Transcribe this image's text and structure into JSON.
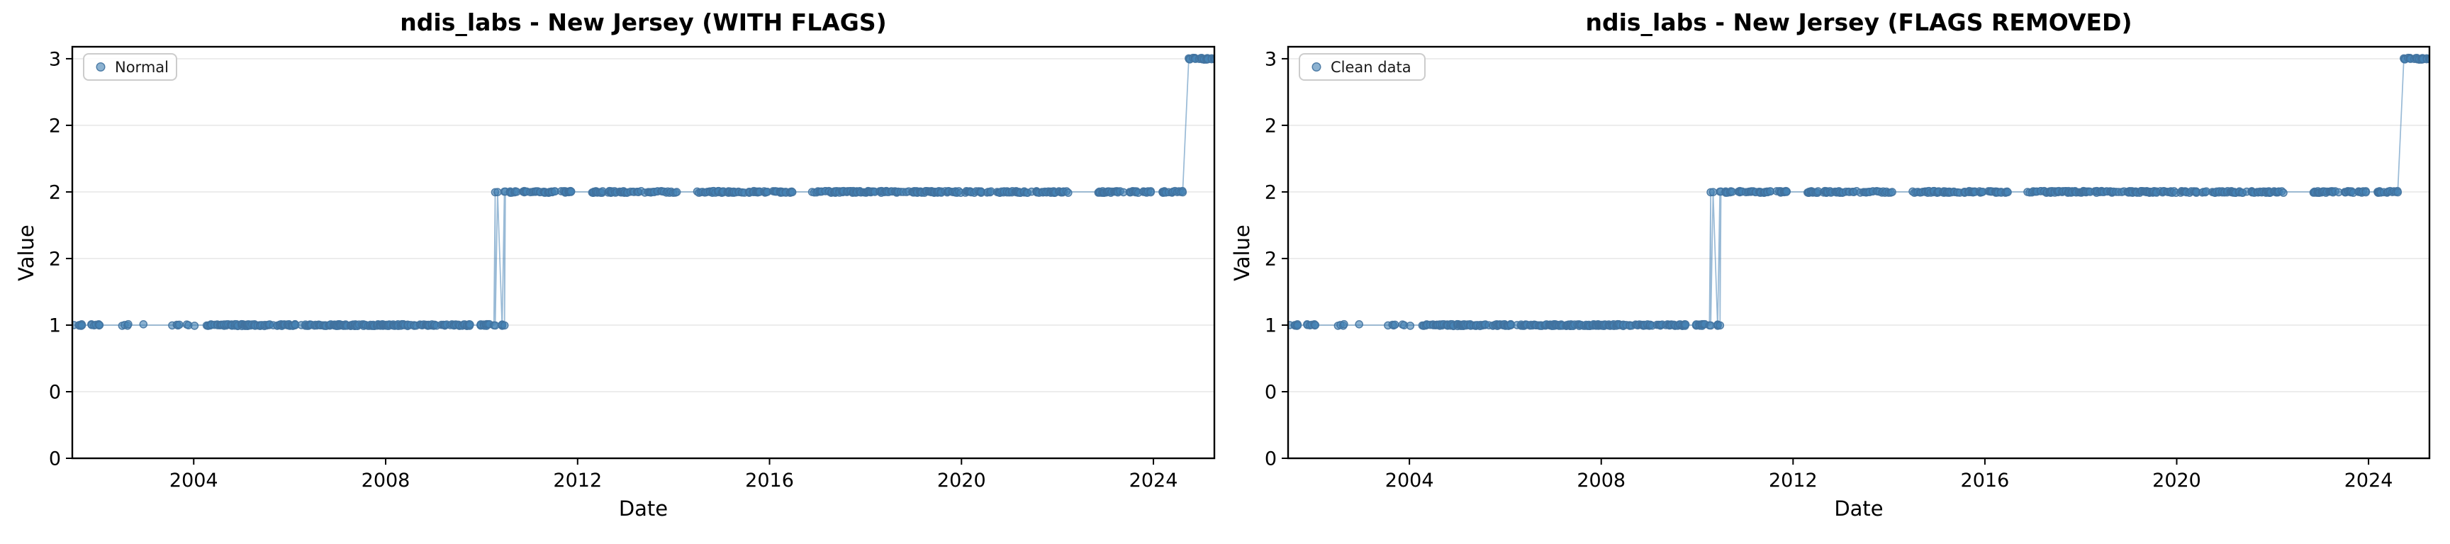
{
  "figure": {
    "background": "#ffffff"
  },
  "chart_data": [
    {
      "type": "scatter",
      "title": "ndis_labs - New Jersey (WITH FLAGS)",
      "xlabel": "Date",
      "ylabel": "Value",
      "legend": {
        "label": "Normal",
        "position": "upper left"
      },
      "grid": true,
      "xlim": [
        2001.47,
        2025.27
      ],
      "ylim": [
        0,
        3.09
      ],
      "xticks": {
        "values": [
          2004,
          2008,
          2012,
          2016,
          2020,
          2024
        ],
        "labels": [
          "2004",
          "2008",
          "2012",
          "2016",
          "2020",
          "2024"
        ]
      },
      "yticks": {
        "values": [
          3.0,
          2.5,
          2.0,
          1.5,
          1.0,
          0.5,
          0.0
        ],
        "labels": [
          "3",
          "2",
          "2",
          "2",
          "1",
          "0",
          "0"
        ]
      },
      "marker_color": "#4682b4",
      "marker_edge_color": "#41729f",
      "line_color": "#4682b4",
      "grid_color": "#e8e8e8",
      "series": {
        "name": "Normal",
        "value_segments": [
          {
            "start": 2001.5,
            "end": 2002.12,
            "value": 1,
            "points": 14
          },
          {
            "start": 2002.45,
            "end": 2002.8,
            "value": 1,
            "points": 4
          },
          {
            "start": 2002.95,
            "end": 2003.0,
            "value": 1,
            "points": 1
          },
          {
            "start": 2003.5,
            "end": 2004.2,
            "value": 1,
            "points": 7
          },
          {
            "start": 2004.25,
            "end": 2009.78,
            "value": 1,
            "points": 260
          },
          {
            "start": 2009.97,
            "end": 2010.18,
            "value": 1,
            "points": 10
          },
          {
            "start": 2010.24,
            "end": 2010.56,
            "value": 1,
            "points": 7
          },
          {
            "start": 2010.1,
            "end": 2010.64,
            "value": 2,
            "points": 8
          },
          {
            "start": 2010.68,
            "end": 2011.88,
            "value": 2,
            "points": 46
          },
          {
            "start": 2012.3,
            "end": 2014.08,
            "value": 2,
            "points": 66
          },
          {
            "start": 2014.4,
            "end": 2016.5,
            "value": 2,
            "points": 80
          },
          {
            "start": 2016.82,
            "end": 2022.25,
            "value": 2,
            "points": 212
          },
          {
            "start": 2022.85,
            "end": 2023.95,
            "value": 2,
            "points": 42
          },
          {
            "start": 2024.15,
            "end": 2024.62,
            "value": 2,
            "points": 18
          },
          {
            "start": 2024.72,
            "end": 2025.33,
            "value": 3,
            "points": 24
          }
        ]
      }
    },
    {
      "type": "scatter",
      "title": "ndis_labs - New Jersey (FLAGS REMOVED)",
      "xlabel": "Date",
      "ylabel": "Value",
      "legend": {
        "label": "Clean data",
        "position": "upper left"
      },
      "grid": true,
      "xlim": [
        2001.47,
        2025.27
      ],
      "ylim": [
        0,
        3.09
      ],
      "xticks": {
        "values": [
          2004,
          2008,
          2012,
          2016,
          2020,
          2024
        ],
        "labels": [
          "2004",
          "2008",
          "2012",
          "2016",
          "2020",
          "2024"
        ]
      },
      "yticks": {
        "values": [
          3.0,
          2.5,
          2.0,
          1.5,
          1.0,
          0.5,
          0.0
        ],
        "labels": [
          "3",
          "2",
          "2",
          "2",
          "1",
          "0",
          "0"
        ]
      },
      "marker_color": "#4682b4",
      "marker_edge_color": "#41729f",
      "line_color": "#4682b4",
      "grid_color": "#e8e8e8",
      "series": {
        "name": "Clean data",
        "value_segments": [
          {
            "start": 2001.5,
            "end": 2002.12,
            "value": 1,
            "points": 14
          },
          {
            "start": 2002.45,
            "end": 2002.8,
            "value": 1,
            "points": 4
          },
          {
            "start": 2002.95,
            "end": 2003.0,
            "value": 1,
            "points": 1
          },
          {
            "start": 2003.5,
            "end": 2004.2,
            "value": 1,
            "points": 7
          },
          {
            "start": 2004.25,
            "end": 2009.78,
            "value": 1,
            "points": 260
          },
          {
            "start": 2009.97,
            "end": 2010.18,
            "value": 1,
            "points": 10
          },
          {
            "start": 2010.24,
            "end": 2010.56,
            "value": 1,
            "points": 7
          },
          {
            "start": 2010.1,
            "end": 2010.64,
            "value": 2,
            "points": 8
          },
          {
            "start": 2010.68,
            "end": 2011.88,
            "value": 2,
            "points": 46
          },
          {
            "start": 2012.3,
            "end": 2014.08,
            "value": 2,
            "points": 66
          },
          {
            "start": 2014.4,
            "end": 2016.5,
            "value": 2,
            "points": 80
          },
          {
            "start": 2016.82,
            "end": 2022.25,
            "value": 2,
            "points": 212
          },
          {
            "start": 2022.85,
            "end": 2023.95,
            "value": 2,
            "points": 42
          },
          {
            "start": 2024.15,
            "end": 2024.62,
            "value": 2,
            "points": 18
          },
          {
            "start": 2024.72,
            "end": 2025.33,
            "value": 3,
            "points": 24
          }
        ]
      }
    }
  ]
}
